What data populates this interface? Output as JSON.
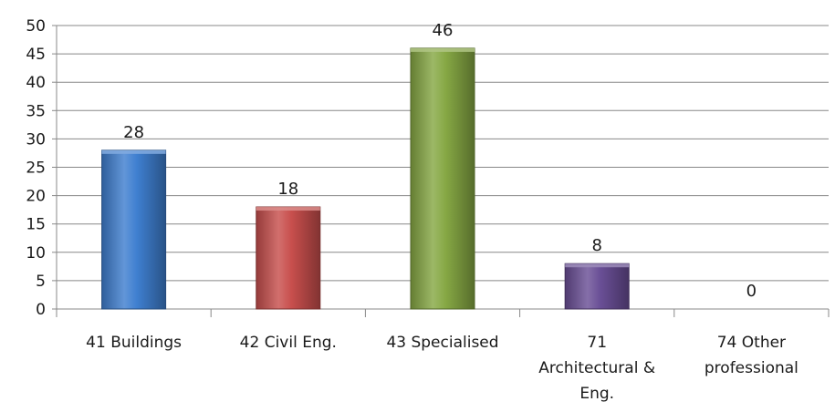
{
  "chart_data": {
    "type": "bar",
    "title": "",
    "xlabel": "",
    "ylabel": "",
    "ylim": [
      0,
      50
    ],
    "ytick_step": 5,
    "yticks": [
      "0",
      "5",
      "10",
      "15",
      "20",
      "25",
      "30",
      "35",
      "40",
      "45",
      "50"
    ],
    "grid": true,
    "legend": "none",
    "categories": [
      [
        "41 Buildings"
      ],
      [
        "42 Civil Eng."
      ],
      [
        "43 Specialised"
      ],
      [
        "71",
        "Architectural &",
        "Eng."
      ],
      [
        "74 Other",
        "professional"
      ]
    ],
    "values": [
      28,
      18,
      46,
      8,
      0
    ],
    "data_labels": [
      "28",
      "18",
      "46",
      "8",
      "0"
    ],
    "colors": [
      "#3f7fd0",
      "#c84f4d",
      "#86a844",
      "#6a4f96",
      "#8a8a8a"
    ]
  }
}
